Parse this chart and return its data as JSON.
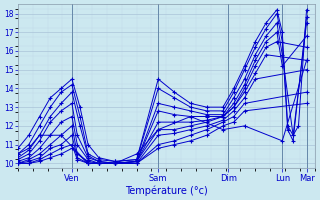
{
  "xlabel": "Température (°c)",
  "xlim": [
    0,
    110
  ],
  "ylim": [
    9.75,
    18.5
  ],
  "yticks": [
    10,
    11,
    12,
    13,
    14,
    15,
    16,
    17,
    18
  ],
  "day_positions": [
    20,
    52,
    78,
    98,
    107
  ],
  "day_labels": [
    "Ven",
    "Sam",
    "Dim",
    "Lun",
    "Mar"
  ],
  "bg_color": "#cce8f0",
  "grid_color_major": "#aac4d8",
  "grid_color_minor": "#c0d8e8",
  "line_color": "#0000cc",
  "vline_color": "#6688aa",
  "lines": [
    {
      "x": [
        0,
        4,
        8,
        12,
        16,
        20,
        23,
        26,
        30,
        36,
        44,
        52,
        58,
        64,
        70,
        76,
        80,
        84,
        88,
        92,
        96,
        98,
        100,
        102,
        104,
        107
      ],
      "y": [
        10.8,
        11.5,
        12.5,
        13.5,
        14.0,
        14.5,
        13.0,
        11.0,
        10.3,
        10.1,
        10.2,
        14.5,
        13.8,
        13.2,
        13.0,
        13.0,
        14.0,
        15.2,
        16.5,
        17.5,
        18.2,
        17.0,
        12.0,
        11.5,
        12.0,
        18.2
      ]
    },
    {
      "x": [
        0,
        4,
        8,
        12,
        16,
        20,
        23,
        26,
        30,
        36,
        44,
        52,
        58,
        64,
        70,
        76,
        80,
        84,
        88,
        92,
        96,
        98,
        100,
        102,
        107
      ],
      "y": [
        10.5,
        11.0,
        12.0,
        13.0,
        13.8,
        14.2,
        12.5,
        10.5,
        10.2,
        10.1,
        10.2,
        14.0,
        13.5,
        13.0,
        12.8,
        12.8,
        13.8,
        15.0,
        16.2,
        17.2,
        18.0,
        16.5,
        11.8,
        11.2,
        17.8
      ]
    },
    {
      "x": [
        0,
        4,
        8,
        12,
        16,
        20,
        23,
        26,
        30,
        36,
        44,
        52,
        58,
        64,
        70,
        76,
        80,
        84,
        88,
        92,
        96,
        98,
        102,
        107
      ],
      "y": [
        10.3,
        10.7,
        11.5,
        12.5,
        13.2,
        13.8,
        12.0,
        10.4,
        10.1,
        10.0,
        10.1,
        13.2,
        13.0,
        12.8,
        12.6,
        12.6,
        13.5,
        14.5,
        15.8,
        16.8,
        17.5,
        15.8,
        11.5,
        17.5
      ]
    },
    {
      "x": [
        0,
        4,
        8,
        12,
        16,
        20,
        22,
        26,
        30,
        36,
        44,
        52,
        58,
        64,
        70,
        76,
        80,
        84,
        88,
        92,
        96,
        98,
        107
      ],
      "y": [
        10.2,
        10.5,
        11.2,
        12.2,
        12.8,
        13.2,
        11.5,
        10.3,
        10.1,
        10.0,
        10.1,
        12.8,
        12.6,
        12.5,
        12.5,
        12.5,
        13.2,
        14.2,
        15.5,
        16.5,
        17.0,
        15.2,
        16.8
      ]
    },
    {
      "x": [
        0,
        4,
        8,
        12,
        16,
        20,
        22,
        26,
        30,
        36,
        44,
        52,
        58,
        64,
        70,
        76,
        80,
        84,
        88,
        92,
        96,
        107
      ],
      "y": [
        10.1,
        10.3,
        10.8,
        11.5,
        12.2,
        12.5,
        11.0,
        10.2,
        10.0,
        10.0,
        10.1,
        12.2,
        12.2,
        12.2,
        12.3,
        12.5,
        13.0,
        14.0,
        15.2,
        16.2,
        16.5,
        16.2
      ]
    },
    {
      "x": [
        0,
        4,
        8,
        12,
        16,
        20,
        22,
        26,
        30,
        36,
        44,
        52,
        58,
        64,
        70,
        76,
        80,
        84,
        88,
        92,
        107
      ],
      "y": [
        10.0,
        10.2,
        10.5,
        11.0,
        11.5,
        12.0,
        10.5,
        10.1,
        10.0,
        10.0,
        10.1,
        11.8,
        11.8,
        12.0,
        12.2,
        12.5,
        13.0,
        13.8,
        14.8,
        15.8,
        15.5
      ]
    },
    {
      "x": [
        0,
        4,
        8,
        12,
        16,
        20,
        22,
        26,
        30,
        36,
        44,
        52,
        58,
        64,
        70,
        76,
        80,
        84,
        88,
        107
      ],
      "y": [
        10.0,
        10.1,
        10.3,
        10.8,
        11.0,
        11.5,
        10.3,
        10.0,
        10.0,
        10.0,
        10.0,
        11.5,
        11.6,
        11.8,
        12.0,
        12.3,
        12.8,
        13.5,
        14.5,
        15.0
      ]
    },
    {
      "x": [
        0,
        4,
        8,
        12,
        16,
        20,
        22,
        26,
        30,
        36,
        44,
        52,
        58,
        64,
        70,
        76,
        80,
        84,
        107
      ],
      "y": [
        10.0,
        10.0,
        10.2,
        10.5,
        10.8,
        11.0,
        10.2,
        10.0,
        10.0,
        10.0,
        10.0,
        11.0,
        11.2,
        11.5,
        11.8,
        12.2,
        12.5,
        13.2,
        13.8
      ]
    },
    {
      "x": [
        0,
        4,
        8,
        12,
        16,
        20,
        26,
        30,
        36,
        44,
        52,
        58,
        64,
        70,
        76,
        80,
        84,
        107
      ],
      "y": [
        10.0,
        10.0,
        10.1,
        10.3,
        10.5,
        10.8,
        10.0,
        10.0,
        10.0,
        10.0,
        10.8,
        11.0,
        11.2,
        11.5,
        12.0,
        12.2,
        12.8,
        13.2
      ]
    },
    {
      "x": [
        0,
        4,
        8,
        16,
        26,
        30,
        36,
        44,
        52,
        64,
        76,
        84,
        98,
        107
      ],
      "y": [
        10.5,
        10.8,
        11.5,
        11.5,
        10.0,
        10.0,
        10.0,
        10.5,
        11.8,
        12.5,
        11.8,
        12.0,
        11.2,
        15.5
      ]
    }
  ]
}
